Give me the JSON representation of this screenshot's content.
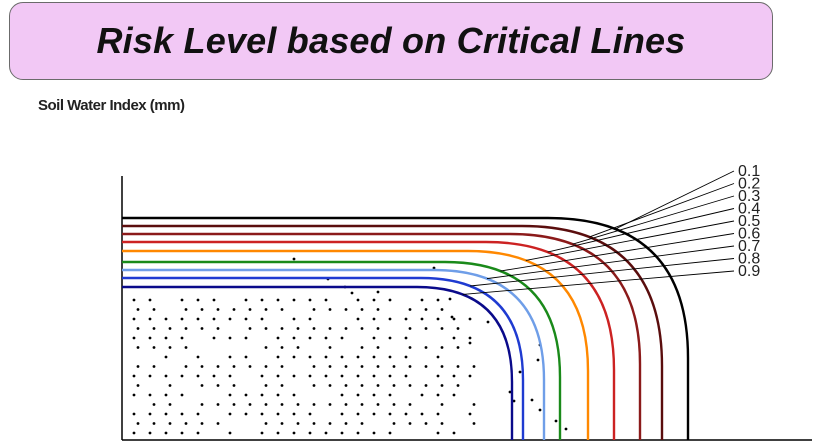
{
  "title": "Risk Level based on Critical Lines",
  "y_axis_label": "Soil Water Index (mm)",
  "levels": [
    "0.1",
    "0.2",
    "0.3",
    "0.4",
    "0.5",
    "0.6",
    "0.7",
    "0.8",
    "0.9"
  ],
  "colors": {
    "title_background": "#f2c8f5",
    "curves": [
      "#000000",
      "#5a0d0d",
      "#8b1a1a",
      "#cc2222",
      "#ff8800",
      "#1a8a1a",
      "#6f9ee8",
      "#1f3bd1",
      "#0a0a8a"
    ]
  }
}
